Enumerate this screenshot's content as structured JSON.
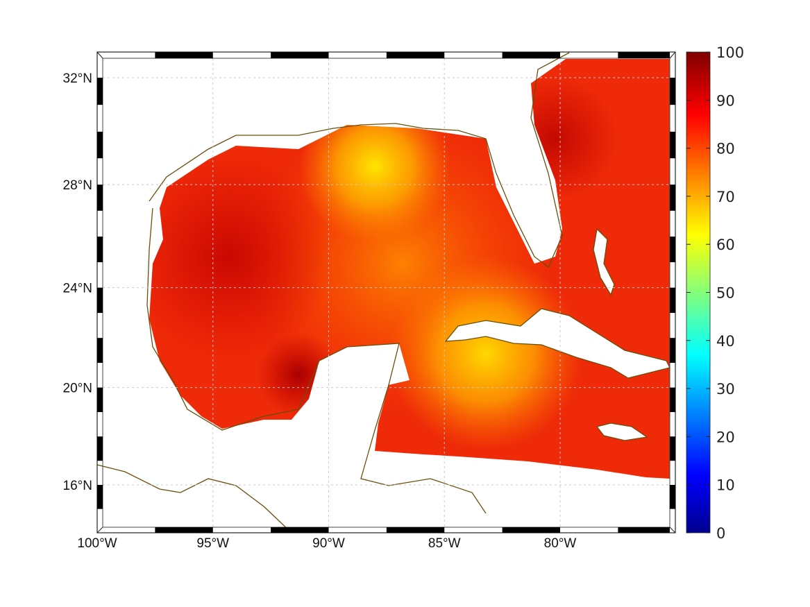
{
  "chart_data": {
    "type": "heatmap",
    "title": "",
    "region": "Gulf of Mexico and western Caribbean",
    "lon_ticks": [
      "100°W",
      "95°W",
      "90°W",
      "85°W",
      "80°W"
    ],
    "lon_values": [
      -100,
      -95,
      -90,
      -85,
      -80
    ],
    "lat_ticks": [
      "32°N",
      "28°N",
      "24°N",
      "20°N",
      "16°N"
    ],
    "lat_values": [
      32,
      28,
      24,
      20,
      16
    ],
    "xlim": [
      -100,
      -75
    ],
    "ylim": [
      15,
      33
    ],
    "grid": true,
    "colorbar": {
      "colormap": "jet",
      "range": [
        0,
        100
      ],
      "ticks": [
        "0",
        "10",
        "20",
        "30",
        "40",
        "50",
        "60",
        "70",
        "80",
        "90",
        "100"
      ],
      "tick_values": [
        0,
        10,
        20,
        30,
        40,
        50,
        60,
        70,
        80,
        90,
        100
      ]
    },
    "field_summary": {
      "typical_value": 85,
      "min_approx": 65,
      "max_approx": 98,
      "low_areas": [
        "off Mississippi/Alabama coast (~65)",
        "south of Cuba (~70)"
      ],
      "high_areas": [
        "western Gulf (~95)",
        "Bay of Campeche (~97)",
        "off Georgia/Carolina (~95)"
      ]
    },
    "colors": {
      "coastline": "#6b4e0a",
      "grid": "#c8c8c8"
    }
  }
}
